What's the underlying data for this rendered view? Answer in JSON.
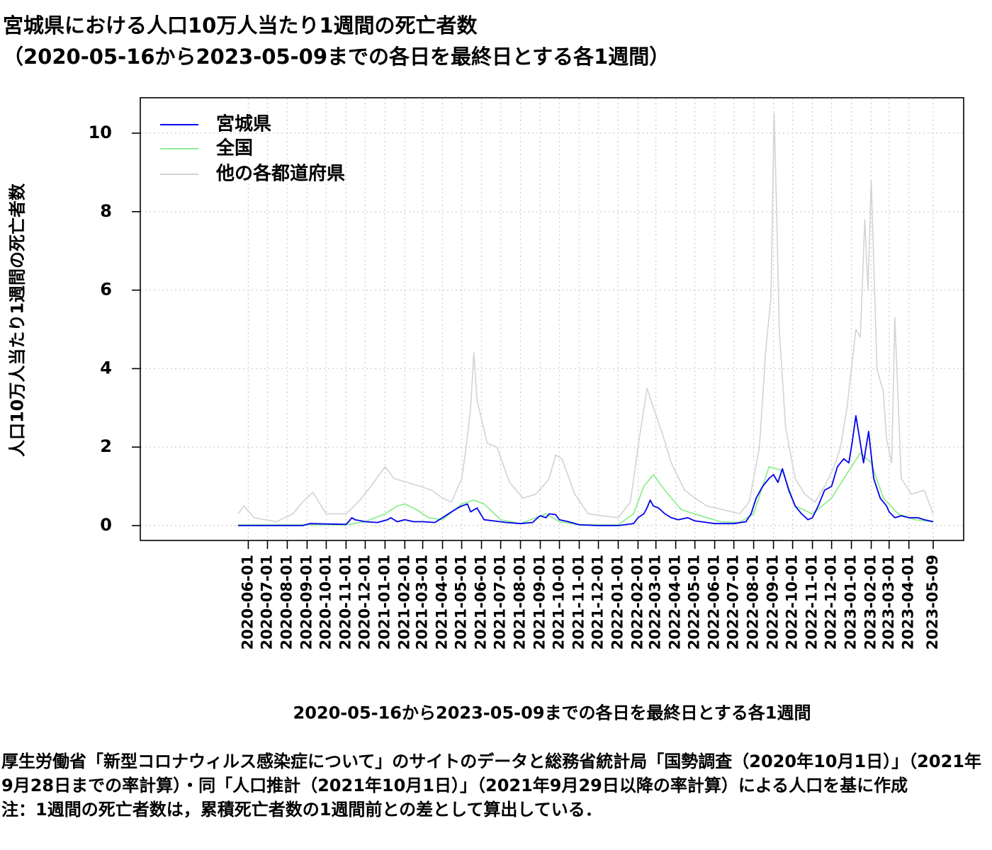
{
  "chart_data": {
    "type": "line",
    "title": "宮城県における人口10万人当たり1週間の死亡者数",
    "subtitle": "（2020-05-16から2023-05-09までの各日を最終日とする各1週間）",
    "xlabel": "2020-05-16から2023-05-09までの各日を最終日とする各1週間",
    "ylabel": "人口10万人当たり1週間の死亡者数",
    "xlim": [
      "2020-05-16",
      "2023-05-09"
    ],
    "ylim": [
      0,
      10.5
    ],
    "y_ticks": [
      0,
      2,
      4,
      6,
      8,
      10
    ],
    "x_ticks": [
      "2020-06-01",
      "2020-07-01",
      "2020-08-01",
      "2020-09-01",
      "2020-10-01",
      "2020-11-01",
      "2020-12-01",
      "2021-01-01",
      "2021-02-01",
      "2021-03-01",
      "2021-04-01",
      "2021-05-01",
      "2021-06-01",
      "2021-07-01",
      "2021-08-01",
      "2021-09-01",
      "2021-10-01",
      "2021-11-01",
      "2021-12-01",
      "2022-01-01",
      "2022-02-01",
      "2022-03-01",
      "2022-04-01",
      "2022-05-01",
      "2022-06-01",
      "2022-07-01",
      "2022-08-01",
      "2022-09-01",
      "2022-10-01",
      "2022-11-01",
      "2022-12-01",
      "2023-01-01",
      "2023-02-01",
      "2023-03-01",
      "2023-04-01",
      "2023-05-09"
    ],
    "x_tick_labels": [
      "2020-06-01",
      "2020-07-01",
      "2020-08-01",
      "2020-09-01",
      "2020-10-01",
      "2020-11-01",
      "2020-12-01",
      "2021-01-01",
      "2021-02-01",
      "2021-03-01",
      "2021-04-01",
      "2021-05-01",
      "2021-06-01",
      "2021-07-01",
      "2021-08-01",
      "2021-09-01",
      "2021-10-01",
      "2021-11-01",
      "2021-12-01",
      "2022-01-01",
      "2022-02-01",
      "2022-03-01",
      "2022-04-01",
      "2022-05-01",
      "2022-06-01",
      "2022-07-01",
      "2022-08-01",
      "2022-09-01",
      "2022-10-01",
      "2022-11-01",
      "2022-12-01",
      "2023-01-01",
      "2023-02-01",
      "2023-03-01",
      "2023-04-01",
      "2023-05-09"
    ],
    "grid": true,
    "legend_position": "top-left",
    "series": [
      {
        "name": "宮城県",
        "color": "#0000ee",
        "x": [
          "2020-05-16",
          "2020-08-25",
          "2020-09-05",
          "2020-11-01",
          "2020-11-05",
          "2020-11-10",
          "2020-11-15",
          "2020-12-01",
          "2020-12-20",
          "2021-01-05",
          "2021-01-10",
          "2021-01-20",
          "2021-02-01",
          "2021-02-15",
          "2021-03-01",
          "2021-03-20",
          "2021-04-01",
          "2021-04-15",
          "2021-04-25",
          "2021-05-01",
          "2021-05-10",
          "2021-05-15",
          "2021-05-25",
          "2021-06-05",
          "2021-06-20",
          "2021-07-10",
          "2021-08-01",
          "2021-08-20",
          "2021-08-28",
          "2021-09-01",
          "2021-09-10",
          "2021-09-15",
          "2021-09-25",
          "2021-10-01",
          "2021-10-15",
          "2021-11-01",
          "2021-12-01",
          "2022-01-01",
          "2022-01-25",
          "2022-02-01",
          "2022-02-10",
          "2022-02-15",
          "2022-02-20",
          "2022-02-25",
          "2022-03-05",
          "2022-03-15",
          "2022-03-25",
          "2022-04-05",
          "2022-04-20",
          "2022-05-01",
          "2022-05-20",
          "2022-06-01",
          "2022-06-20",
          "2022-07-01",
          "2022-07-20",
          "2022-07-28",
          "2022-08-05",
          "2022-08-15",
          "2022-08-25",
          "2022-09-01",
          "2022-09-08",
          "2022-09-15",
          "2022-09-25",
          "2022-10-05",
          "2022-10-15",
          "2022-10-25",
          "2022-11-01",
          "2022-11-10",
          "2022-11-20",
          "2022-12-01",
          "2022-12-10",
          "2022-12-20",
          "2022-12-28",
          "2023-01-02",
          "2023-01-08",
          "2023-01-14",
          "2023-01-20",
          "2023-01-28",
          "2023-02-05",
          "2023-02-15",
          "2023-02-25",
          "2023-03-01",
          "2023-03-10",
          "2023-03-20",
          "2023-04-01",
          "2023-04-15",
          "2023-04-25",
          "2023-05-09"
        ],
        "values": [
          0,
          0,
          0.05,
          0.03,
          0.1,
          0.2,
          0.15,
          0.1,
          0.08,
          0.15,
          0.2,
          0.1,
          0.15,
          0.1,
          0.1,
          0.08,
          0.2,
          0.35,
          0.45,
          0.5,
          0.55,
          0.35,
          0.45,
          0.15,
          0.12,
          0.08,
          0.05,
          0.08,
          0.2,
          0.25,
          0.2,
          0.3,
          0.28,
          0.15,
          0.1,
          0.02,
          0,
          0,
          0.05,
          0.2,
          0.3,
          0.45,
          0.65,
          0.5,
          0.45,
          0.3,
          0.2,
          0.15,
          0.2,
          0.12,
          0.08,
          0.05,
          0.05,
          0.05,
          0.1,
          0.3,
          0.7,
          1.0,
          1.2,
          1.3,
          1.1,
          1.45,
          0.9,
          0.5,
          0.3,
          0.15,
          0.2,
          0.5,
          0.9,
          1.0,
          1.5,
          1.7,
          1.6,
          2.1,
          2.8,
          2.2,
          1.6,
          2.4,
          1.2,
          0.7,
          0.5,
          0.35,
          0.2,
          0.25,
          0.2,
          0.2,
          0.15,
          0.1
        ]
      },
      {
        "name": "全国",
        "color": "#90ee90",
        "x": [
          "2020-05-16",
          "2020-11-01",
          "2020-12-01",
          "2021-01-01",
          "2021-01-20",
          "2021-02-01",
          "2021-02-20",
          "2021-03-10",
          "2021-04-01",
          "2021-05-01",
          "2021-05-20",
          "2021-06-05",
          "2021-07-01",
          "2021-08-01",
          "2021-08-25",
          "2021-09-10",
          "2021-10-01",
          "2021-11-01",
          "2022-01-01",
          "2022-01-25",
          "2022-02-10",
          "2022-02-25",
          "2022-03-15",
          "2022-04-10",
          "2022-05-10",
          "2022-06-10",
          "2022-07-10",
          "2022-08-01",
          "2022-08-25",
          "2022-09-15",
          "2022-10-05",
          "2022-11-01",
          "2022-12-01",
          "2023-01-01",
          "2023-01-15",
          "2023-02-01",
          "2023-02-20",
          "2023-03-15",
          "2023-04-10",
          "2023-05-09"
        ],
        "values": [
          0.02,
          0.02,
          0.1,
          0.3,
          0.5,
          0.55,
          0.4,
          0.2,
          0.15,
          0.55,
          0.65,
          0.55,
          0.15,
          0.05,
          0.2,
          0.3,
          0.1,
          0.02,
          0.02,
          0.3,
          1.0,
          1.3,
          0.9,
          0.4,
          0.25,
          0.1,
          0.08,
          0.3,
          1.5,
          1.4,
          0.5,
          0.3,
          0.7,
          1.5,
          1.85,
          1.6,
          0.7,
          0.3,
          0.15,
          0.1
        ]
      },
      {
        "name": "他の各都道府県",
        "color": "#d3d3d3",
        "x": [
          "2020-05-16",
          "2020-05-25",
          "2020-06-10",
          "2020-07-15",
          "2020-08-10",
          "2020-08-25",
          "2020-09-10",
          "2020-10-01",
          "2020-11-01",
          "2020-11-20",
          "2020-12-10",
          "2021-01-01",
          "2021-01-15",
          "2021-02-05",
          "2021-02-25",
          "2021-03-15",
          "2021-04-01",
          "2021-04-15",
          "2021-05-01",
          "2021-05-08",
          "2021-05-15",
          "2021-05-20",
          "2021-05-25",
          "2021-06-10",
          "2021-06-25",
          "2021-07-15",
          "2021-08-05",
          "2021-08-25",
          "2021-09-05",
          "2021-09-15",
          "2021-09-25",
          "2021-10-05",
          "2021-10-25",
          "2021-11-15",
          "2022-01-01",
          "2022-01-20",
          "2022-02-01",
          "2022-02-15",
          "2022-02-25",
          "2022-03-10",
          "2022-03-25",
          "2022-04-15",
          "2022-05-01",
          "2022-05-20",
          "2022-06-15",
          "2022-07-10",
          "2022-07-25",
          "2022-08-10",
          "2022-08-20",
          "2022-08-28",
          "2022-09-02",
          "2022-09-06",
          "2022-09-10",
          "2022-09-20",
          "2022-10-05",
          "2022-10-20",
          "2022-11-05",
          "2022-11-20",
          "2022-12-05",
          "2022-12-15",
          "2022-12-25",
          "2023-01-01",
          "2023-01-08",
          "2023-01-15",
          "2023-01-22",
          "2023-01-27",
          "2023-02-01",
          "2023-02-10",
          "2023-02-20",
          "2023-02-25",
          "2023-03-05",
          "2023-03-10",
          "2023-03-20",
          "2023-04-05",
          "2023-04-25",
          "2023-05-09"
        ],
        "values": [
          0.3,
          0.5,
          0.2,
          0.1,
          0.3,
          0.6,
          0.85,
          0.3,
          0.3,
          0.6,
          1.0,
          1.5,
          1.2,
          1.1,
          1.0,
          0.9,
          0.7,
          0.6,
          1.2,
          2.0,
          3.0,
          4.4,
          3.2,
          2.1,
          2.0,
          1.1,
          0.7,
          0.8,
          1.0,
          1.2,
          1.8,
          1.7,
          0.8,
          0.3,
          0.2,
          0.6,
          2.0,
          3.5,
          3.0,
          2.4,
          1.6,
          0.9,
          0.7,
          0.5,
          0.4,
          0.3,
          0.6,
          2.0,
          4.5,
          5.8,
          10.5,
          8.0,
          5.0,
          2.5,
          1.2,
          0.8,
          0.6,
          1.0,
          1.5,
          2.0,
          3.0,
          4.0,
          5.0,
          4.8,
          7.8,
          6.0,
          8.8,
          4.0,
          3.4,
          2.2,
          1.6,
          5.3,
          1.2,
          0.8,
          0.9,
          0.3
        ]
      }
    ]
  },
  "source_note": {
    "line1": "厚生労働省「新型コロナウィルス感染症について」のサイトのデータと総務省統計局「国勢調査（2020年10月1日）」（2021年9月28日までの率計算）・同「人口推計（2021年10月1日）」（2021年9月29日以降の率計算）による人口を基に作成",
    "line2": "注：1週間の死亡者数は，累積死亡者数の1週間前との差として算出している．"
  }
}
